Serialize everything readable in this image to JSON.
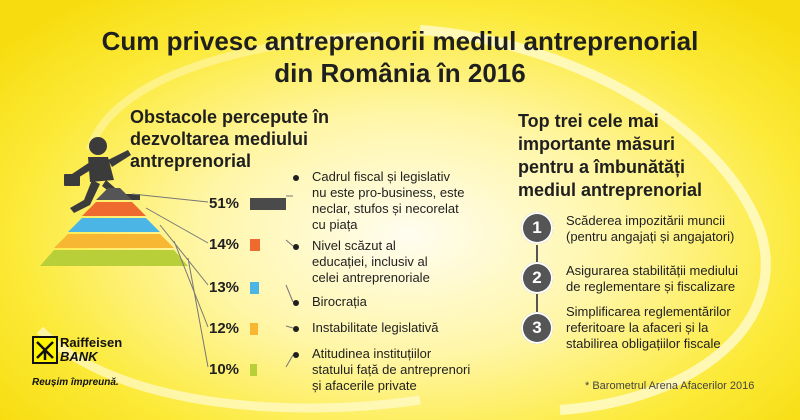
{
  "title": {
    "line1": "Cum privesc antreprenorii mediul antreprenorial",
    "line2": "din România în 2016"
  },
  "obstacles": {
    "heading": [
      "Obstacole percepute în",
      "dezvoltarea mediului",
      "antreprenorial"
    ],
    "items": [
      {
        "pct": "51%",
        "value": 51,
        "color": "#4a4a4a",
        "text": [
          "Cadrul fiscal și legislativ",
          "nu este pro-business, este",
          "neclar, stufos și necorelat",
          "cu piața"
        ]
      },
      {
        "pct": "14%",
        "value": 14,
        "color": "#ef6a2e",
        "text": [
          "Nivel scăzut al",
          "educației, inclusiv al",
          "celei antreprenoriale"
        ]
      },
      {
        "pct": "13%",
        "value": 13,
        "color": "#4bb6e6",
        "text": [
          "Birocrația"
        ]
      },
      {
        "pct": "12%",
        "value": 12,
        "color": "#f7b733",
        "text": [
          "Instabilitate legislativă"
        ]
      },
      {
        "pct": "10%",
        "value": 10,
        "color": "#b8cf3a",
        "text": [
          "Atitudinea instituțiilor",
          "statului față de antreprenori",
          "și afacerile private"
        ]
      }
    ]
  },
  "measures": {
    "heading": [
      "Top trei cele mai",
      "importante măsuri",
      "pentru a îmbunătăți",
      "mediul antreprenorial"
    ],
    "items": [
      {
        "num": "1",
        "text": [
          "Scăderea impozitării muncii",
          "(pentru angajați și angajatori)"
        ]
      },
      {
        "num": "2",
        "text": [
          "Asigurarea stabilității mediului",
          "de reglementare și fiscalizare"
        ]
      },
      {
        "num": "3",
        "text": [
          "Simplificarea reglementărilor",
          "referitoare la afaceri și la",
          "stabilirea obligațiilor fiscale"
        ]
      }
    ]
  },
  "logo": {
    "name1": "Raiffeisen",
    "name2": "BANK",
    "tagline": "Reușim împreună."
  },
  "footnote": "* Barometrul Arena Afacerilor 2016",
  "icons": {
    "pyramid": "pyramid-icon",
    "runner": "businessman-running-icon",
    "logo": "raiffeisen-logo-icon"
  },
  "colors": {
    "background": "#fcea3a",
    "text": "#1f1f1f",
    "circle": "#555555"
  }
}
